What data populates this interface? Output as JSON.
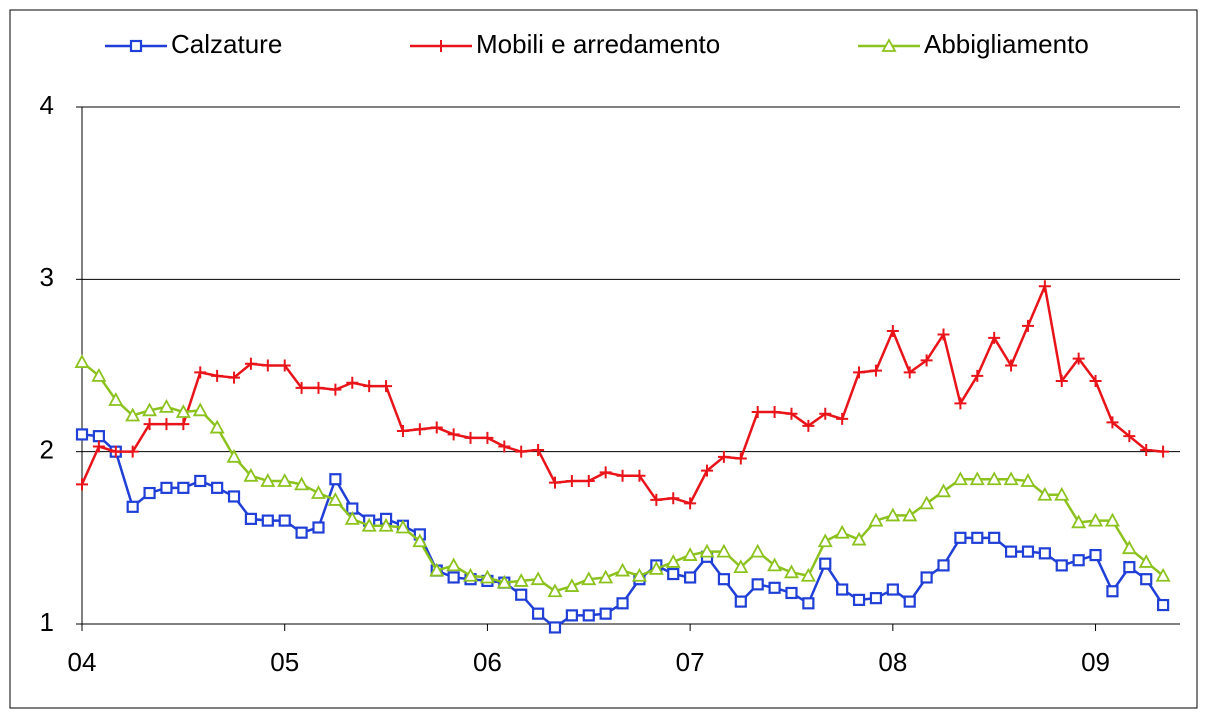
{
  "chart_data": {
    "type": "line",
    "categories": [
      "04",
      null,
      null,
      null,
      null,
      null,
      null,
      null,
      null,
      null,
      null,
      null,
      "05",
      null,
      null,
      null,
      null,
      null,
      null,
      null,
      null,
      null,
      null,
      null,
      "06",
      null,
      null,
      null,
      null,
      null,
      null,
      null,
      null,
      null,
      null,
      null,
      "07",
      null,
      null,
      null,
      null,
      null,
      null,
      null,
      null,
      null,
      null,
      null,
      "08",
      null,
      null,
      null,
      null,
      null,
      null,
      null,
      null,
      null,
      null,
      null,
      "09",
      null,
      null,
      null,
      null
    ],
    "series": [
      {
        "name": "Calzature",
        "color": "#1f3fd6",
        "marker": "square",
        "values": [
          2.1,
          2.09,
          2.0,
          1.68,
          1.76,
          1.79,
          1.79,
          1.83,
          1.79,
          1.74,
          1.61,
          1.6,
          1.6,
          1.53,
          1.56,
          1.84,
          1.67,
          1.6,
          1.61,
          1.57,
          1.52,
          1.31,
          1.27,
          1.26,
          1.25,
          1.24,
          1.17,
          1.06,
          0.98,
          1.05,
          1.05,
          1.06,
          1.12,
          1.26,
          1.34,
          1.29,
          1.27,
          1.39,
          1.26,
          1.13,
          1.23,
          1.21,
          1.18,
          1.12,
          1.35,
          1.2,
          1.14,
          1.15,
          1.2,
          1.13,
          1.27,
          1.34,
          1.5,
          1.5,
          1.5,
          1.42,
          1.42,
          1.41,
          1.34,
          1.37,
          1.4,
          1.19,
          1.33,
          1.26,
          1.11
        ]
      },
      {
        "name": "Mobili e arredamento",
        "color": "#e8141a",
        "marker": "plus",
        "values": [
          1.81,
          2.03,
          2.0,
          2.0,
          2.16,
          2.16,
          2.16,
          2.46,
          2.44,
          2.43,
          2.51,
          2.5,
          2.5,
          2.37,
          2.37,
          2.36,
          2.4,
          2.38,
          2.38,
          2.12,
          2.13,
          2.14,
          2.1,
          2.08,
          2.08,
          2.03,
          2.0,
          2.01,
          1.82,
          1.83,
          1.83,
          1.88,
          1.86,
          1.86,
          1.72,
          1.73,
          1.7,
          1.89,
          1.97,
          1.96,
          2.23,
          2.23,
          2.22,
          2.15,
          2.22,
          2.19,
          2.46,
          2.47,
          2.7,
          2.46,
          2.53,
          2.68,
          2.28,
          2.44,
          2.66,
          2.5,
          2.73,
          2.96,
          2.41,
          2.54,
          2.41,
          2.17,
          2.09,
          2.01,
          2.0
        ]
      },
      {
        "name": "Abbigliamento",
        "color": "#8cc21e",
        "marker": "triangle",
        "values": [
          2.52,
          2.44,
          2.3,
          2.21,
          2.24,
          2.26,
          2.23,
          2.24,
          2.14,
          1.97,
          1.86,
          1.83,
          1.83,
          1.81,
          1.76,
          1.72,
          1.61,
          1.57,
          1.57,
          1.56,
          1.48,
          1.31,
          1.34,
          1.28,
          1.27,
          1.24,
          1.25,
          1.26,
          1.19,
          1.22,
          1.26,
          1.27,
          1.31,
          1.28,
          1.32,
          1.36,
          1.4,
          1.42,
          1.42,
          1.33,
          1.42,
          1.34,
          1.3,
          1.28,
          1.48,
          1.53,
          1.49,
          1.6,
          1.63,
          1.63,
          1.7,
          1.77,
          1.84,
          1.84,
          1.84,
          1.84,
          1.83,
          1.75,
          1.75,
          1.59,
          1.6,
          1.6,
          1.44,
          1.36,
          1.28
        ]
      }
    ],
    "ylim": [
      1,
      4
    ],
    "yticks": [
      1,
      2,
      3,
      4
    ],
    "grid": true,
    "legend": "top"
  }
}
